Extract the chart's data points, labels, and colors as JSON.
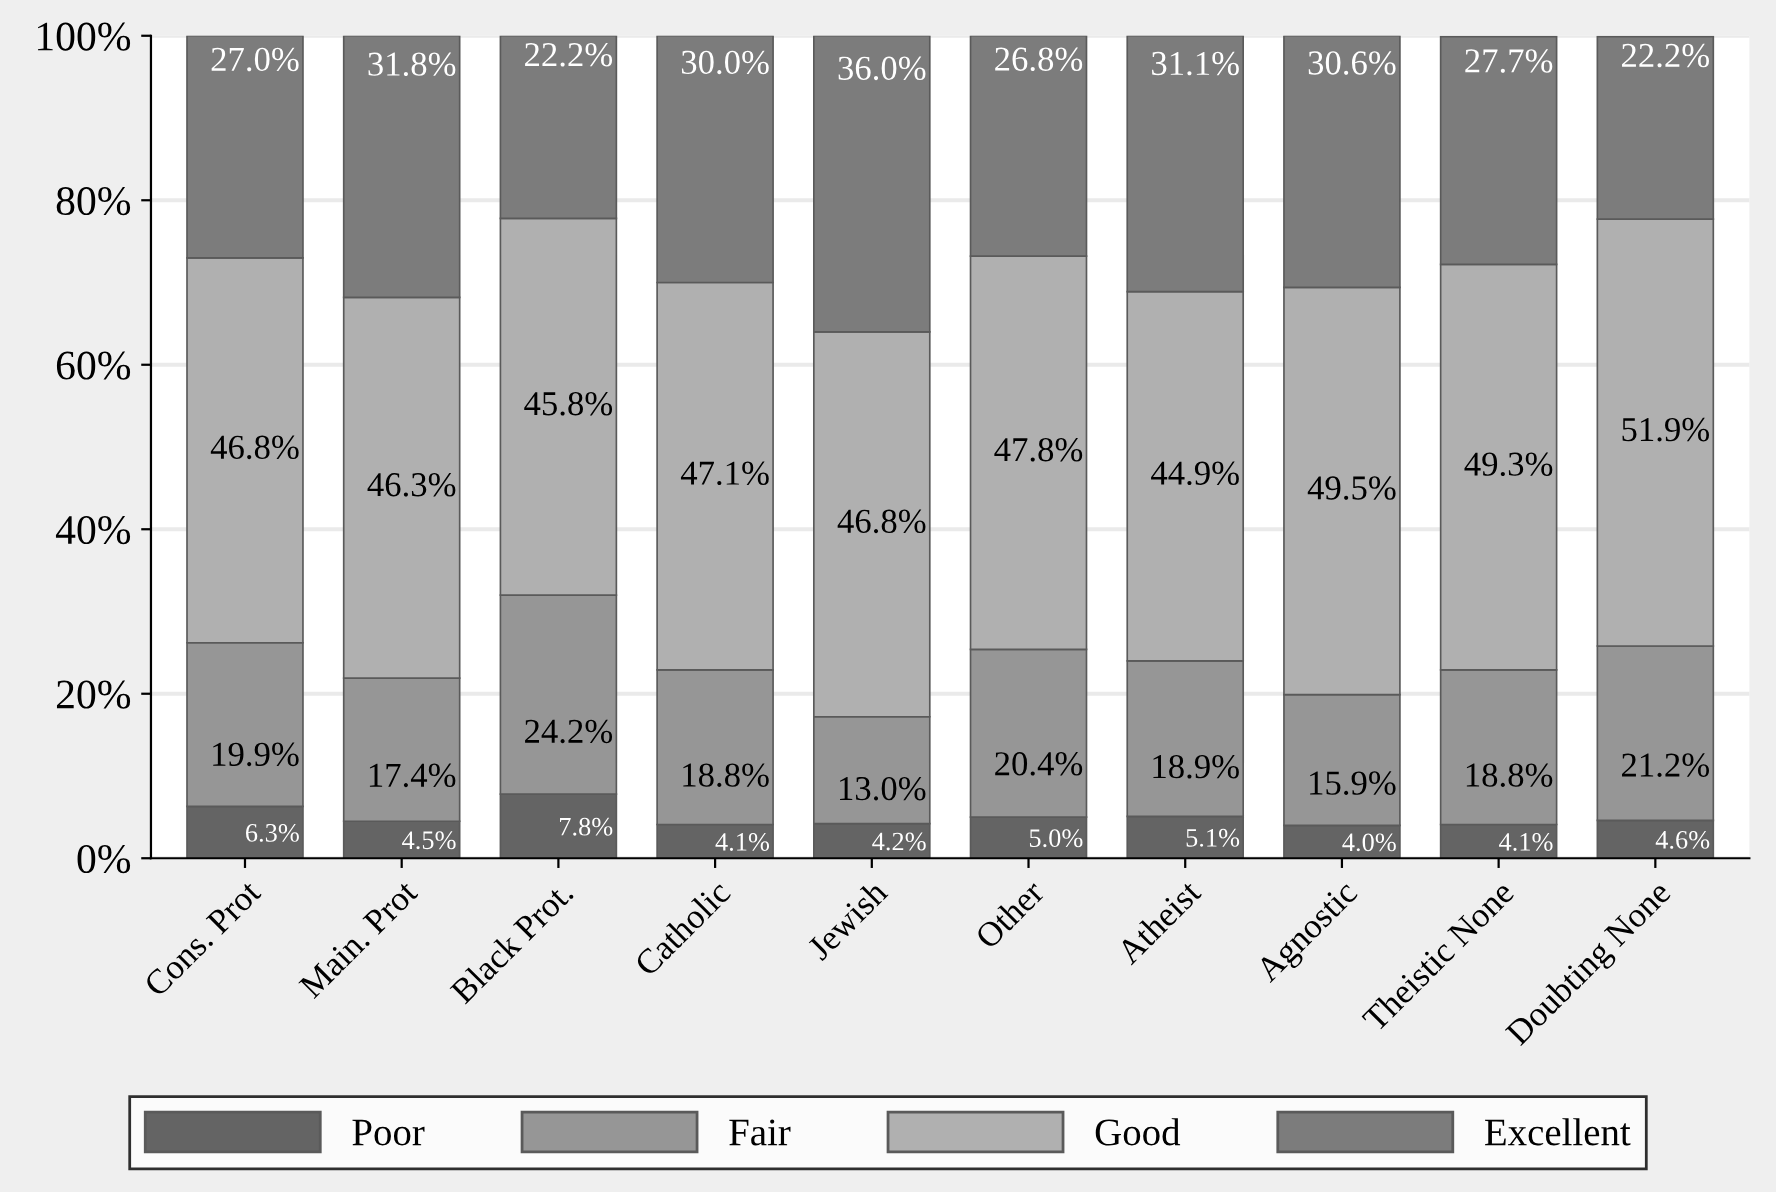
{
  "chart_data": {
    "type": "bar",
    "stacked": true,
    "categories": [
      "Cons. Prot",
      "Main. Prot",
      "Black Prot.",
      "Catholic",
      "Jewish",
      "Other",
      "Atheist",
      "Agnostic",
      "Theistic None",
      "Doubting None"
    ],
    "series": [
      {
        "name": "Poor",
        "color": "#646464",
        "values": [
          6.3,
          4.5,
          7.8,
          4.1,
          4.2,
          5.0,
          5.1,
          4.0,
          4.1,
          4.6
        ],
        "value_labels": [
          "6.3%",
          "4.5%",
          "7.8%",
          "4.1%",
          "4.2%",
          "5.0%",
          "5.1%",
          "4.0%",
          "4.1%",
          "4.6%"
        ]
      },
      {
        "name": "Fair",
        "color": "#969696",
        "values": [
          19.9,
          17.4,
          24.2,
          18.8,
          13.0,
          20.4,
          18.9,
          15.9,
          18.8,
          21.2
        ],
        "value_labels": [
          "19.9%",
          "17.4%",
          "24.2%",
          "18.8%",
          "13.0%",
          "20.4%",
          "18.9%",
          "15.9%",
          "18.8%",
          "21.2%"
        ]
      },
      {
        "name": "Good",
        "color": "#b0b0b0",
        "values": [
          46.8,
          46.3,
          45.8,
          47.1,
          46.8,
          47.8,
          44.9,
          49.5,
          49.3,
          51.9
        ],
        "value_labels": [
          "46.8%",
          "46.3%",
          "45.8%",
          "47.1%",
          "46.8%",
          "47.8%",
          "44.9%",
          "49.5%",
          "49.3%",
          "51.9%"
        ]
      },
      {
        "name": "Excellent",
        "color": "#7c7c7c",
        "values": [
          27.0,
          31.8,
          22.2,
          30.0,
          36.0,
          26.8,
          31.1,
          30.6,
          27.7,
          22.2
        ],
        "value_labels": [
          "27.0%",
          "31.8%",
          "22.2%",
          "30.0%",
          "36.0%",
          "26.8%",
          "31.1%",
          "30.6%",
          "27.7%",
          "22.2%"
        ]
      }
    ],
    "ylim": [
      0,
      100
    ],
    "yticks": [
      {
        "value": 0,
        "label": "0%"
      },
      {
        "value": 20,
        "label": "20%"
      },
      {
        "value": 40,
        "label": "40%"
      },
      {
        "value": 60,
        "label": "60%"
      },
      {
        "value": 80,
        "label": "80%"
      },
      {
        "value": 100,
        "label": "100%"
      }
    ],
    "grid": "y",
    "legend": "bottom"
  }
}
